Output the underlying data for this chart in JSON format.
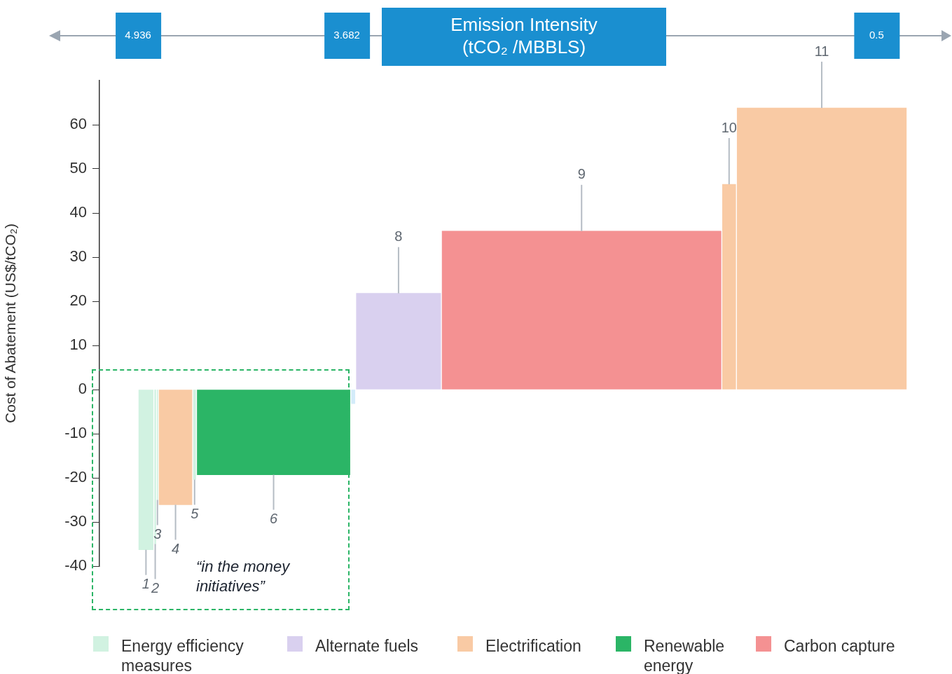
{
  "chart_data": {
    "type": "bar",
    "xlabel": "Emission Intensity\n(tCO₂ /MBBLS)",
    "ylabel": "Cost of Abatement (US$/tCO₂)",
    "x": [
      4.8885,
      4.833,
      4.8195,
      4.711,
      4.5965,
      4.122,
      3.644,
      3.3715,
      2.272,
      1.386,
      0.8295
    ],
    "xlim": [
      4.936,
      0.3
    ],
    "xticks": [
      4.936,
      3.682,
      0.5
    ],
    "ylim": [
      -40,
      70
    ],
    "yticks": [
      -40,
      -30,
      -20,
      -10,
      0,
      10,
      20,
      30,
      40,
      50,
      60
    ],
    "series": [
      {
        "name": "Energy efficiency measures",
        "color": "#d1f2e1",
        "values": [
          -36.3,
          -35,
          -25,
          null,
          -20.4,
          null,
          null,
          null,
          null,
          null,
          null
        ]
      },
      {
        "name": "Alternate fuels",
        "color": "#d9d0ef",
        "values": [
          null,
          null,
          null,
          null,
          null,
          null,
          null,
          21.8,
          null,
          null,
          null
        ]
      },
      {
        "name": "Electrification",
        "color": "#f9caa4",
        "values": [
          null,
          null,
          null,
          -26.1,
          null,
          null,
          null,
          null,
          null,
          46.5,
          63.8
        ]
      },
      {
        "name": "Renewable energy",
        "color": "#2bb566",
        "values": [
          null,
          null,
          null,
          null,
          null,
          -19.3,
          null,
          null,
          null,
          null,
          null
        ]
      },
      {
        "name": "Carbon capture",
        "color": "#f49192",
        "values": [
          null,
          null,
          null,
          null,
          null,
          null,
          null,
          null,
          35.9,
          null,
          null
        ]
      },
      {
        "color": "#d4ecfa",
        "values": [
          null,
          null,
          null,
          null,
          null,
          null,
          -3.2,
          null,
          null,
          null,
          null
        ]
      }
    ],
    "annotations": [
      {
        "text": "1",
        "x": 4.8885,
        "y": -36.3
      },
      {
        "text": "2",
        "x": 4.833,
        "y": -35
      },
      {
        "text": "3",
        "x": 4.8195,
        "y": -25
      },
      {
        "text": "4",
        "x": 4.711,
        "y": -26.1
      },
      {
        "text": "5",
        "x": 4.5965,
        "y": -20.4
      },
      {
        "text": "6",
        "x": 4.122,
        "y": -19.3
      },
      {
        "text": "8",
        "x": 3.3715,
        "y": 21.8
      },
      {
        "text": "9",
        "x": 2.272,
        "y": 35.9
      },
      {
        "text": "10",
        "x": 1.386,
        "y": 46.5
      },
      {
        "text": "11",
        "x": 0.8295,
        "y": 63.8
      },
      "“in the money initiatives”"
    ],
    "legend": "bottom"
  }
}
